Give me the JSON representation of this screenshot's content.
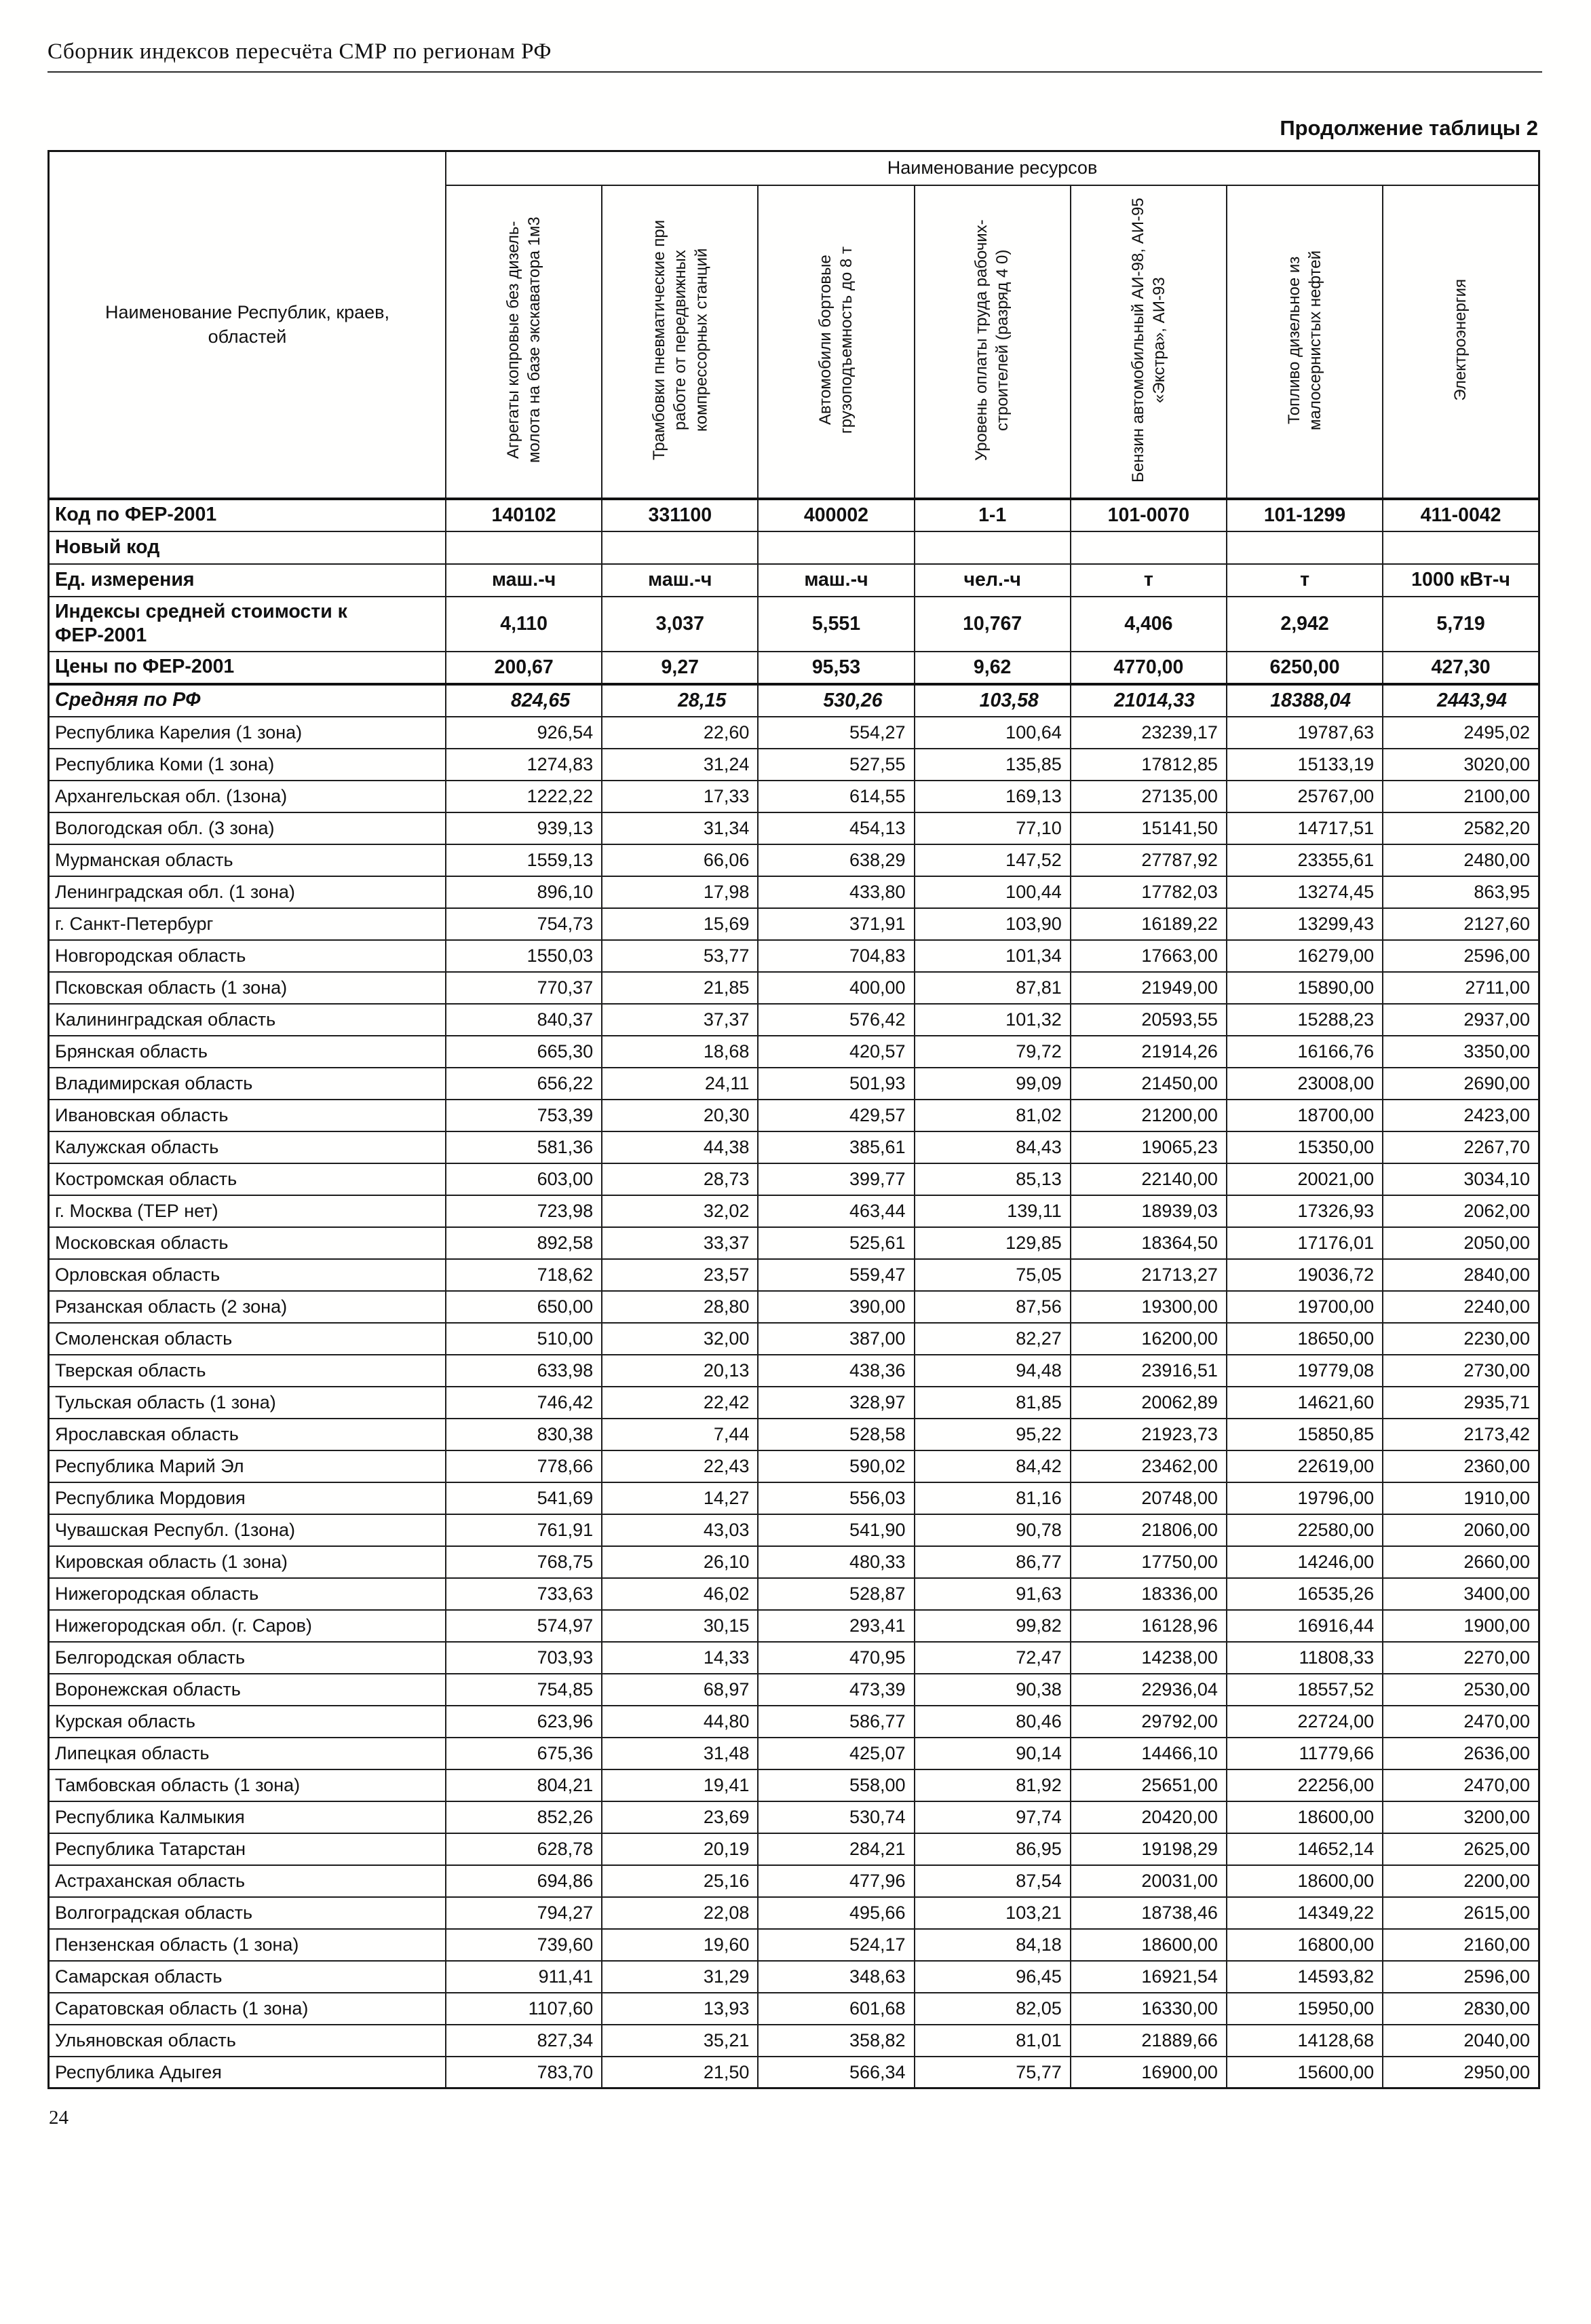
{
  "page": {
    "header_title": "Сборник индексов пересчёта СМР  по регионам РФ",
    "table_caption": "Продолжение таблицы 2",
    "page_number": "24"
  },
  "table": {
    "resources_header": "Наименование ресурсов",
    "region_col_header": "Наименование Республик, краев, областей",
    "columns": [
      "Агрегаты копровые без дизель-молота на базе экскаватора 1м3",
      "Трамбовки пневматические при работе от передвижных компрессорных станций",
      "Автомобили бортовые грузоподъемность до 8 т",
      "Уровень оплаты труда рабочих-строителей (разряд 4 0)",
      "Бензин автомобильный АИ-98, АИ-95 «Экстра», АИ-93",
      "Топливо дизельное из малосернистых нефтей",
      "Электроэнергия"
    ],
    "meta_rows": [
      {
        "label": "Код по ФЕР-2001",
        "style": "first",
        "values": [
          "140102",
          "331100",
          "400002",
          "1-1",
          "101-0070",
          "101-1299",
          "411-0042"
        ]
      },
      {
        "label": "Новый код",
        "style": "",
        "values": [
          "",
          "",
          "",
          "",
          "",
          "",
          ""
        ]
      },
      {
        "label": "Ед. измерения",
        "style": "",
        "values": [
          "маш.-ч",
          "маш.-ч",
          "маш.-ч",
          "чел.-ч",
          "т",
          "т",
          "1000 кВт-ч"
        ]
      },
      {
        "label": "Индексы средней стоимости к ФЕР-2001",
        "style": "",
        "values": [
          "4,110",
          "3,037",
          "5,551",
          "10,767",
          "4,406",
          "2,942",
          "5,719"
        ]
      },
      {
        "label": "Цены по ФЕР-2001",
        "style": "",
        "values": [
          "200,67",
          "9,27",
          "95,53",
          "9,62",
          "4770,00",
          "6250,00",
          "427,30"
        ]
      },
      {
        "label": "Средняя по РФ",
        "style": "bold-italic",
        "values": [
          "824,65",
          "28,15",
          "530,26",
          "103,58",
          "21014,33",
          "18388,04",
          "2443,94"
        ]
      }
    ],
    "data_rows": [
      {
        "label": "Республика Карелия (1 зона)",
        "values": [
          "926,54",
          "22,60",
          "554,27",
          "100,64",
          "23239,17",
          "19787,63",
          "2495,02"
        ]
      },
      {
        "label": "Республика Коми (1 зона)",
        "values": [
          "1274,83",
          "31,24",
          "527,55",
          "135,85",
          "17812,85",
          "15133,19",
          "3020,00"
        ]
      },
      {
        "label": "Архангельская обл. (1зона)",
        "values": [
          "1222,22",
          "17,33",
          "614,55",
          "169,13",
          "27135,00",
          "25767,00",
          "2100,00"
        ]
      },
      {
        "label": "Вологодская обл. (3 зона)",
        "values": [
          "939,13",
          "31,34",
          "454,13",
          "77,10",
          "15141,50",
          "14717,51",
          "2582,20"
        ]
      },
      {
        "label": "Мурманская область",
        "values": [
          "1559,13",
          "66,06",
          "638,29",
          "147,52",
          "27787,92",
          "23355,61",
          "2480,00"
        ]
      },
      {
        "label": "Ленинградская обл. (1 зона)",
        "values": [
          "896,10",
          "17,98",
          "433,80",
          "100,44",
          "17782,03",
          "13274,45",
          "863,95"
        ]
      },
      {
        "label": "г. Санкт-Петербург",
        "values": [
          "754,73",
          "15,69",
          "371,91",
          "103,90",
          "16189,22",
          "13299,43",
          "2127,60"
        ]
      },
      {
        "label": "Новгородская область",
        "values": [
          "1550,03",
          "53,77",
          "704,83",
          "101,34",
          "17663,00",
          "16279,00",
          "2596,00"
        ]
      },
      {
        "label": "Псковская область (1 зона)",
        "values": [
          "770,37",
          "21,85",
          "400,00",
          "87,81",
          "21949,00",
          "15890,00",
          "2711,00"
        ]
      },
      {
        "label": "Калининградская область",
        "values": [
          "840,37",
          "37,37",
          "576,42",
          "101,32",
          "20593,55",
          "15288,23",
          "2937,00"
        ]
      },
      {
        "label": "Брянская область",
        "values": [
          "665,30",
          "18,68",
          "420,57",
          "79,72",
          "21914,26",
          "16166,76",
          "3350,00"
        ]
      },
      {
        "label": "Владимирская область",
        "values": [
          "656,22",
          "24,11",
          "501,93",
          "99,09",
          "21450,00",
          "23008,00",
          "2690,00"
        ]
      },
      {
        "label": "Ивановская область",
        "values": [
          "753,39",
          "20,30",
          "429,57",
          "81,02",
          "21200,00",
          "18700,00",
          "2423,00"
        ]
      },
      {
        "label": "Калужская область",
        "values": [
          "581,36",
          "44,38",
          "385,61",
          "84,43",
          "19065,23",
          "15350,00",
          "2267,70"
        ]
      },
      {
        "label": "Костромская область",
        "values": [
          "603,00",
          "28,73",
          "399,77",
          "85,13",
          "22140,00",
          "20021,00",
          "3034,10"
        ]
      },
      {
        "label": "г. Москва (ТЕР нет)",
        "values": [
          "723,98",
          "32,02",
          "463,44",
          "139,11",
          "18939,03",
          "17326,93",
          "2062,00"
        ]
      },
      {
        "label": "Московская область",
        "values": [
          "892,58",
          "33,37",
          "525,61",
          "129,85",
          "18364,50",
          "17176,01",
          "2050,00"
        ]
      },
      {
        "label": "Орловская область",
        "values": [
          "718,62",
          "23,57",
          "559,47",
          "75,05",
          "21713,27",
          "19036,72",
          "2840,00"
        ]
      },
      {
        "label": "Рязанская область (2 зона)",
        "values": [
          "650,00",
          "28,80",
          "390,00",
          "87,56",
          "19300,00",
          "19700,00",
          "2240,00"
        ]
      },
      {
        "label": "Смоленская область",
        "values": [
          "510,00",
          "32,00",
          "387,00",
          "82,27",
          "16200,00",
          "18650,00",
          "2230,00"
        ]
      },
      {
        "label": "Тверская область",
        "values": [
          "633,98",
          "20,13",
          "438,36",
          "94,48",
          "23916,51",
          "19779,08",
          "2730,00"
        ]
      },
      {
        "label": "Тульская область (1 зона)",
        "values": [
          "746,42",
          "22,42",
          "328,97",
          "81,85",
          "20062,89",
          "14621,60",
          "2935,71"
        ]
      },
      {
        "label": "Ярославская область",
        "values": [
          "830,38",
          "7,44",
          "528,58",
          "95,22",
          "21923,73",
          "15850,85",
          "2173,42"
        ]
      },
      {
        "label": "Республика Марий Эл",
        "values": [
          "778,66",
          "22,43",
          "590,02",
          "84,42",
          "23462,00",
          "22619,00",
          "2360,00"
        ]
      },
      {
        "label": "Республика Мордовия",
        "values": [
          "541,69",
          "14,27",
          "556,03",
          "81,16",
          "20748,00",
          "19796,00",
          "1910,00"
        ]
      },
      {
        "label": "Чувашская Республ. (1зона)",
        "values": [
          "761,91",
          "43,03",
          "541,90",
          "90,78",
          "21806,00",
          "22580,00",
          "2060,00"
        ]
      },
      {
        "label": "Кировская область (1 зона)",
        "values": [
          "768,75",
          "26,10",
          "480,33",
          "86,77",
          "17750,00",
          "14246,00",
          "2660,00"
        ]
      },
      {
        "label": "Нижегородская область",
        "values": [
          "733,63",
          "46,02",
          "528,87",
          "91,63",
          "18336,00",
          "16535,26",
          "3400,00"
        ]
      },
      {
        "label": "Нижегородская обл. (г. Саров)",
        "values": [
          "574,97",
          "30,15",
          "293,41",
          "99,82",
          "16128,96",
          "16916,44",
          "1900,00"
        ]
      },
      {
        "label": "Белгородская область",
        "values": [
          "703,93",
          "14,33",
          "470,95",
          "72,47",
          "14238,00",
          "11808,33",
          "2270,00"
        ]
      },
      {
        "label": "Воронежская область",
        "values": [
          "754,85",
          "68,97",
          "473,39",
          "90,38",
          "22936,04",
          "18557,52",
          "2530,00"
        ]
      },
      {
        "label": "Курская область",
        "values": [
          "623,96",
          "44,80",
          "586,77",
          "80,46",
          "29792,00",
          "22724,00",
          "2470,00"
        ]
      },
      {
        "label": "Липецкая область",
        "values": [
          "675,36",
          "31,48",
          "425,07",
          "90,14",
          "14466,10",
          "11779,66",
          "2636,00"
        ]
      },
      {
        "label": "Тамбовская область (1 зона)",
        "values": [
          "804,21",
          "19,41",
          "558,00",
          "81,92",
          "25651,00",
          "22256,00",
          "2470,00"
        ]
      },
      {
        "label": "Республика Калмыкия",
        "values": [
          "852,26",
          "23,69",
          "530,74",
          "97,74",
          "20420,00",
          "18600,00",
          "3200,00"
        ]
      },
      {
        "label": "Республика Татарстан",
        "values": [
          "628,78",
          "20,19",
          "284,21",
          "86,95",
          "19198,29",
          "14652,14",
          "2625,00"
        ]
      },
      {
        "label": "Астраханская область",
        "values": [
          "694,86",
          "25,16",
          "477,96",
          "87,54",
          "20031,00",
          "18600,00",
          "2200,00"
        ]
      },
      {
        "label": "Волгоградская область",
        "values": [
          "794,27",
          "22,08",
          "495,66",
          "103,21",
          "18738,46",
          "14349,22",
          "2615,00"
        ]
      },
      {
        "label": "Пензенская область (1 зона)",
        "values": [
          "739,60",
          "19,60",
          "524,17",
          "84,18",
          "18600,00",
          "16800,00",
          "2160,00"
        ]
      },
      {
        "label": "Самарская область",
        "values": [
          "911,41",
          "31,29",
          "348,63",
          "96,45",
          "16921,54",
          "14593,82",
          "2596,00"
        ]
      },
      {
        "label": "Саратовская область (1 зона)",
        "values": [
          "1107,60",
          "13,93",
          "601,68",
          "82,05",
          "16330,00",
          "15950,00",
          "2830,00"
        ]
      },
      {
        "label": "Ульяновская область",
        "values": [
          "827,34",
          "35,21",
          "358,82",
          "81,01",
          "21889,66",
          "14128,68",
          "2040,00"
        ]
      },
      {
        "label": "Республика Адыгея",
        "values": [
          "783,70",
          "21,50",
          "566,34",
          "75,77",
          "16900,00",
          "15600,00",
          "2950,00"
        ]
      }
    ]
  }
}
